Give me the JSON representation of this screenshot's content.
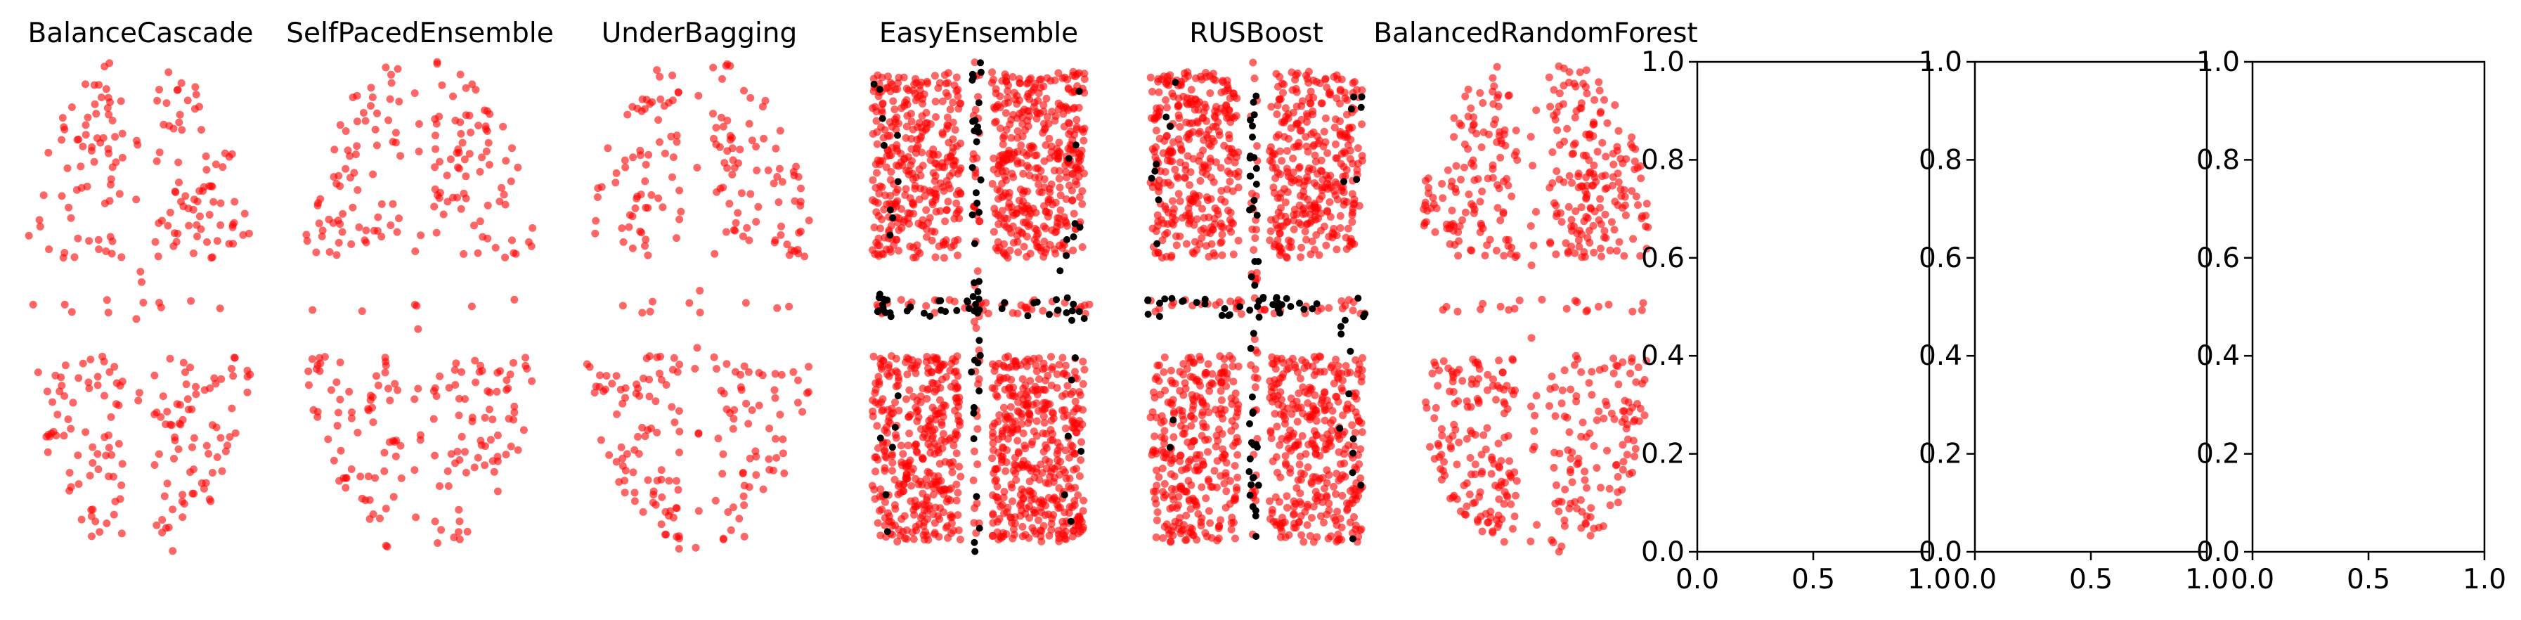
{
  "chart_data": [
    {
      "type": "scatter",
      "title": "BalanceCascade",
      "axis": "off",
      "pattern": "sparse",
      "series": [
        {
          "name": "",
          "color": "#ff0000",
          "count": 300
        }
      ]
    },
    {
      "type": "scatter",
      "title": "SelfPacedEnsemble",
      "axis": "off",
      "pattern": "sparse",
      "series": [
        {
          "name": "",
          "color": "#ff0000",
          "count": 300
        }
      ]
    },
    {
      "type": "scatter",
      "title": "UnderBagging",
      "axis": "off",
      "pattern": "sparse",
      "series": [
        {
          "name": "",
          "color": "#ff0000",
          "count": 300
        }
      ]
    },
    {
      "type": "scatter",
      "title": "EasyEnsemble",
      "axis": "off",
      "pattern": "dense",
      "series": [
        {
          "name": "",
          "color": "#ff0000",
          "count": 1500
        },
        {
          "name": "",
          "color": "#000000",
          "count": 110
        }
      ]
    },
    {
      "type": "scatter",
      "title": "RUSBoost",
      "axis": "off",
      "pattern": "dense",
      "series": [
        {
          "name": "",
          "color": "#ff0000",
          "count": 1300
        },
        {
          "name": "",
          "color": "#000000",
          "count": 110
        }
      ]
    },
    {
      "type": "scatter",
      "title": "BalancedRandomForest",
      "axis": "off",
      "pattern": "medium",
      "series": [
        {
          "name": "",
          "color": "#ff0000",
          "count": 600
        }
      ]
    },
    {
      "type": "scatter",
      "title": "",
      "axis": "on",
      "xlim": [
        0,
        1
      ],
      "ylim": [
        0,
        1
      ],
      "xticks": [
        "0.0",
        "0.5",
        "1.0"
      ],
      "yticks": [
        "0.0",
        "0.2",
        "0.4",
        "0.6",
        "0.8",
        "1.0"
      ],
      "series": []
    },
    {
      "type": "scatter",
      "title": "",
      "axis": "on",
      "xlim": [
        0,
        1
      ],
      "ylim": [
        0,
        1
      ],
      "xticks": [
        "0.0",
        "0.5",
        "1.0"
      ],
      "yticks": [
        "0.0",
        "0.2",
        "0.4",
        "0.6",
        "0.8",
        "1.0"
      ],
      "series": []
    },
    {
      "type": "scatter",
      "title": "",
      "axis": "on",
      "xlim": [
        0,
        1
      ],
      "ylim": [
        0,
        1
      ],
      "xticks": [
        "0.0",
        "0.5",
        "1.0"
      ],
      "yticks": [
        "0.0",
        "0.2",
        "0.4",
        "0.6",
        "0.8",
        "1.0"
      ],
      "series": []
    }
  ]
}
